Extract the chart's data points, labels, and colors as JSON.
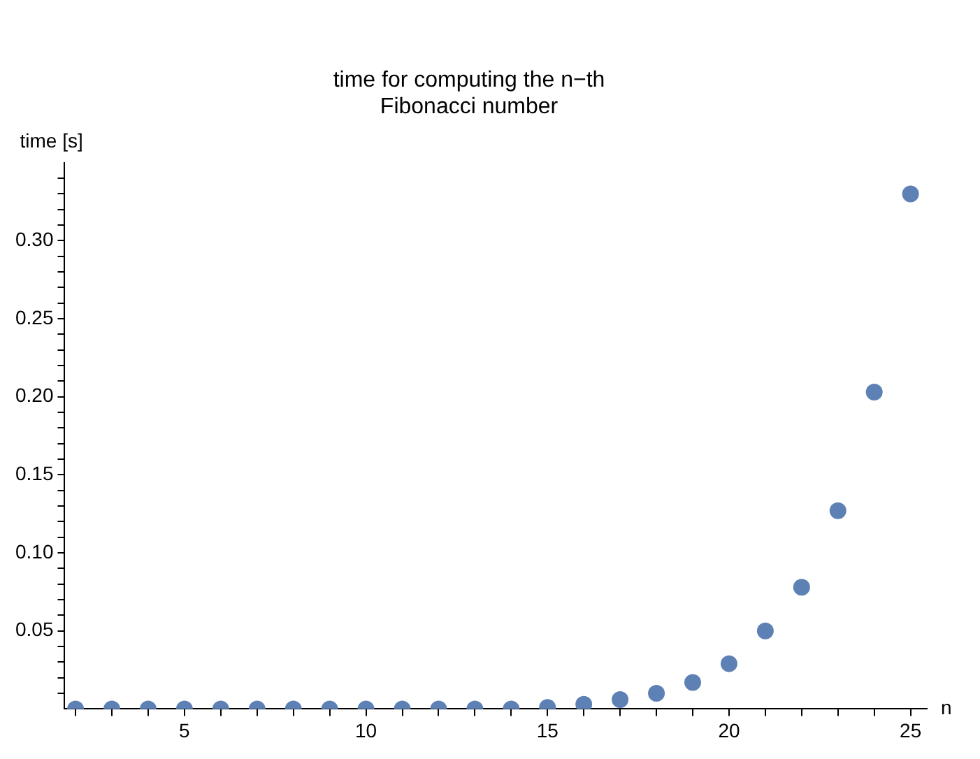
{
  "chart_data": {
    "type": "scatter",
    "title": "time for computing the n−th\nFibonacci number",
    "xlabel": "n",
    "ylabel": "time [s]",
    "x": [
      2,
      3,
      4,
      5,
      6,
      7,
      8,
      9,
      10,
      11,
      12,
      13,
      14,
      15,
      16,
      17,
      18,
      19,
      20,
      21,
      22,
      23,
      24,
      25
    ],
    "series": [
      {
        "color": "#5e81b5",
        "values": [
          0,
          0,
          0,
          0,
          0,
          0,
          0,
          0,
          0,
          0,
          0,
          0,
          0,
          0.001,
          0.003,
          0.006,
          0.01,
          0.017,
          0.029,
          0.05,
          0.078,
          0.127,
          0.203,
          0.33
        ]
      }
    ],
    "xlim": [
      1.7,
      25.45
    ],
    "xticks": [
      {
        "value": 2,
        "label": null
      },
      {
        "value": 3,
        "label": null
      },
      {
        "value": 4,
        "label": null
      },
      5,
      {
        "value": 6,
        "label": null
      },
      {
        "value": 7,
        "label": null
      },
      {
        "value": 8,
        "label": null
      },
      {
        "value": 9,
        "label": null
      },
      10,
      {
        "value": 11,
        "label": null
      },
      {
        "value": 12,
        "label": null
      },
      {
        "value": 13,
        "label": null
      },
      {
        "value": 14,
        "label": null
      },
      15,
      {
        "value": 16,
        "label": null
      },
      {
        "value": 17,
        "label": null
      },
      {
        "value": 18,
        "label": null
      },
      {
        "value": 19,
        "label": null
      },
      20,
      {
        "value": 21,
        "label": null
      },
      {
        "value": 22,
        "label": null
      },
      {
        "value": 23,
        "label": null
      },
      {
        "value": 24,
        "label": null
      },
      25
    ],
    "ylim": [
      0,
      0.35
    ],
    "yticks": [
      {
        "value": 0.01,
        "label": null
      },
      {
        "value": 0.02,
        "label": null
      },
      {
        "value": 0.03,
        "label": null
      },
      {
        "value": 0.04,
        "label": null
      },
      {
        "value": 0.05,
        "label": "0.05"
      },
      {
        "value": 0.06,
        "label": null
      },
      {
        "value": 0.07,
        "label": null
      },
      {
        "value": 0.08,
        "label": null
      },
      {
        "value": 0.09,
        "label": null
      },
      {
        "value": 0.1,
        "label": "0.10"
      },
      {
        "value": 0.11,
        "label": null
      },
      {
        "value": 0.12,
        "label": null
      },
      {
        "value": 0.13,
        "label": null
      },
      {
        "value": 0.14,
        "label": null
      },
      {
        "value": 0.15,
        "label": "0.15"
      },
      {
        "value": 0.16,
        "label": null
      },
      {
        "value": 0.17,
        "label": null
      },
      {
        "value": 0.18,
        "label": null
      },
      {
        "value": 0.19,
        "label": null
      },
      {
        "value": 0.2,
        "label": "0.20"
      },
      {
        "value": 0.21,
        "label": null
      },
      {
        "value": 0.22,
        "label": null
      },
      {
        "value": 0.23,
        "label": null
      },
      {
        "value": 0.24,
        "label": null
      },
      {
        "value": 0.25,
        "label": "0.25"
      },
      {
        "value": 0.26,
        "label": null
      },
      {
        "value": 0.27,
        "label": null
      },
      {
        "value": 0.28,
        "label": null
      },
      {
        "value": 0.29,
        "label": null
      },
      {
        "value": 0.3,
        "label": "0.30"
      },
      {
        "value": 0.31,
        "label": null
      },
      {
        "value": 0.32,
        "label": null
      },
      {
        "value": 0.33,
        "label": null
      },
      {
        "value": 0.34,
        "label": null
      }
    ],
    "grid": false,
    "legend": false,
    "marker": "circle"
  }
}
